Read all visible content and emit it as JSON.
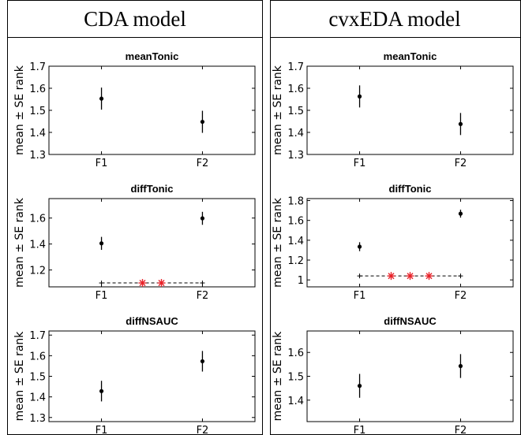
{
  "columns": [
    {
      "title": "CDA model"
    },
    {
      "title": "cvxEDA model"
    }
  ],
  "chart_data": [
    {
      "type": "scatter",
      "model": "CDA model",
      "title": "meanTonic",
      "categories": [
        "F1",
        "F2"
      ],
      "ylabel": "mean ± SE rank",
      "ylim": [
        1.3,
        1.7
      ],
      "yticks": [
        1.3,
        1.4,
        1.5,
        1.6,
        1.7
      ],
      "yticklabels": [
        "1.3",
        "1.4",
        "1.5",
        "1.6",
        "1.7"
      ],
      "values": [
        1.553,
        1.448
      ],
      "se": [
        0.05,
        0.05
      ],
      "significance": null
    },
    {
      "type": "scatter",
      "model": "CDA model",
      "title": "diffTonic",
      "categories": [
        "F1",
        "F2"
      ],
      "ylabel": "mean ± SE rank",
      "ylim": [
        1.07,
        1.75
      ],
      "yticks": [
        1.2,
        1.4,
        1.6
      ],
      "yticklabels": [
        "1.2",
        "1.4",
        "1.6"
      ],
      "values": [
        1.405,
        1.598
      ],
      "se": [
        0.05,
        0.05
      ],
      "significance": {
        "y": 1.1,
        "markers": 2
      }
    },
    {
      "type": "scatter",
      "model": "CDA model",
      "title": "diffNSAUC",
      "categories": [
        "F1",
        "F2"
      ],
      "ylabel": "mean ± SE rank",
      "ylim": [
        1.28,
        1.72
      ],
      "yticks": [
        1.3,
        1.4,
        1.5,
        1.6,
        1.7
      ],
      "yticklabels": [
        "1.3",
        "1.4",
        "1.5",
        "1.6",
        "1.7"
      ],
      "values": [
        1.428,
        1.573
      ],
      "se": [
        0.05,
        0.05
      ],
      "significance": null
    },
    {
      "type": "scatter",
      "model": "cvxEDA model",
      "title": "meanTonic",
      "categories": [
        "F1",
        "F2"
      ],
      "ylabel": "mean ± SE rank",
      "ylim": [
        1.3,
        1.7
      ],
      "yticks": [
        1.3,
        1.4,
        1.5,
        1.6,
        1.7
      ],
      "yticklabels": [
        "1.3",
        "1.4",
        "1.5",
        "1.6",
        "1.7"
      ],
      "values": [
        1.563,
        1.438
      ],
      "se": [
        0.05,
        0.05
      ],
      "significance": null
    },
    {
      "type": "scatter",
      "model": "cvxEDA model",
      "title": "diffTonic",
      "categories": [
        "F1",
        "F2"
      ],
      "ylabel": "mean ± SE rank",
      "ylim": [
        0.93,
        1.82
      ],
      "yticks": [
        1,
        1.2,
        1.4,
        1.6,
        1.8
      ],
      "yticklabels": [
        "1",
        "1.2",
        "1.4",
        "1.6",
        "1.8"
      ],
      "values": [
        1.335,
        1.668
      ],
      "se": [
        0.045,
        0.04
      ],
      "significance": {
        "y": 1.04,
        "markers": 3
      }
    },
    {
      "type": "scatter",
      "model": "cvxEDA model",
      "title": "diffNSAUC",
      "categories": [
        "F1",
        "F2"
      ],
      "ylabel": "mean ± SE rank",
      "ylim": [
        1.31,
        1.69
      ],
      "yticks": [
        1.4,
        1.5,
        1.6
      ],
      "yticklabels": [
        "1.4",
        "1.5",
        "1.6"
      ],
      "values": [
        1.46,
        1.543
      ],
      "se": [
        0.05,
        0.05
      ],
      "significance": null
    }
  ]
}
